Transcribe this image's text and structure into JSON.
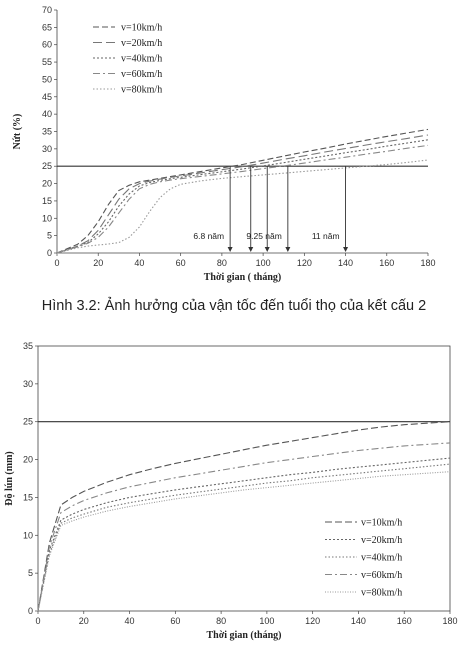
{
  "caption": "Hình 3.2: Ảnh hưởng của vận tốc đến tuổi thọ của kết cấu 2",
  "chart_data": [
    {
      "type": "line",
      "title": "",
      "xlabel": "Thời gian ( tháng)",
      "ylabel": "Nứt (%)",
      "xlim": [
        0,
        180
      ],
      "ylim": [
        0,
        70
      ],
      "xticks": [
        0,
        20,
        40,
        60,
        80,
        100,
        120,
        140,
        160,
        180
      ],
      "yticks": [
        0,
        5,
        10,
        15,
        20,
        25,
        30,
        35,
        40,
        45,
        50,
        55,
        60,
        65,
        70
      ],
      "grid": false,
      "legend_position": "top-left",
      "x": [
        0,
        10,
        15,
        20,
        25,
        30,
        35,
        40,
        45,
        50,
        55,
        60,
        70,
        80,
        90,
        100,
        110,
        120,
        130,
        140,
        150,
        160,
        170,
        180
      ],
      "series": [
        {
          "name": "v=10km/h",
          "dash": "6 3",
          "color": "#555555",
          "values": [
            0,
            2.5,
            5,
            9,
            14,
            18,
            19.5,
            20.5,
            21,
            21.5,
            22,
            22.5,
            23.5,
            24.5,
            25.5,
            26.7,
            27.9,
            29.1,
            30.2,
            31.4,
            32.5,
            33.6,
            34.6,
            35.6
          ]
        },
        {
          "name": "v=20km/h",
          "dash": "9 4",
          "color": "#777777",
          "values": [
            0,
            2,
            3.5,
            6.5,
            11,
            15.5,
            18.5,
            20,
            20.7,
            21.3,
            21.8,
            22.2,
            23.1,
            24,
            24.9,
            25.9,
            27,
            28,
            29.1,
            30.1,
            31.1,
            32.1,
            33,
            34
          ]
        },
        {
          "name": "v=40km/h",
          "dash": "2 2",
          "color": "#666666",
          "values": [
            0,
            2,
            3,
            5.5,
            9,
            13.5,
            17,
            19.3,
            20.3,
            20.9,
            21.4,
            21.8,
            22.6,
            23.4,
            24.2,
            25.1,
            26,
            27,
            27.9,
            28.9,
            29.8,
            30.8,
            31.7,
            32.6
          ]
        },
        {
          "name": "v=60km/h",
          "dash": "7 3 2 3",
          "color": "#888888",
          "values": [
            0,
            1.8,
            2.8,
            4.5,
            7.5,
            11.5,
            15.5,
            18.5,
            19.8,
            20.5,
            21,
            21.4,
            22.1,
            22.8,
            23.5,
            24.3,
            25.1,
            25.9,
            26.8,
            27.6,
            28.5,
            29.3,
            30.2,
            31
          ]
        },
        {
          "name": "v=80km/h",
          "dash": "1.5 2",
          "color": "#999999",
          "values": [
            0,
            1.5,
            2,
            2.3,
            2.6,
            3,
            4.5,
            7.5,
            12,
            16,
            18.5,
            19.8,
            20.8,
            21.5,
            22,
            22.5,
            23,
            23.5,
            24,
            24.5,
            25,
            25.5,
            26.1,
            26.8
          ]
        }
      ],
      "reference_line": {
        "y": 25
      },
      "markers": [
        {
          "x": 84,
          "label": "6.8 năm"
        },
        {
          "x": 94
        },
        {
          "x": 102
        },
        {
          "x": 112,
          "label": "9.25 năm"
        },
        {
          "x": 140,
          "label": "11 năm"
        }
      ]
    },
    {
      "type": "line",
      "title": "",
      "xlabel": "Thời gian (tháng)",
      "ylabel": "Độ lún (mm)",
      "xlim": [
        0,
        180
      ],
      "ylim": [
        0,
        35
      ],
      "xticks": [
        0,
        20,
        40,
        60,
        80,
        100,
        120,
        140,
        160,
        180
      ],
      "yticks": [
        0,
        5,
        10,
        15,
        20,
        25,
        30,
        35
      ],
      "grid": false,
      "legend_position": "bottom-right",
      "x": [
        0,
        5,
        10,
        15,
        20,
        30,
        40,
        50,
        60,
        70,
        80,
        90,
        100,
        110,
        120,
        130,
        140,
        150,
        160,
        170,
        180
      ],
      "series": [
        {
          "name": "v=10km/h",
          "dash": "7 3",
          "color": "#555555",
          "values": [
            0,
            9,
            14,
            15,
            15.8,
            17,
            18,
            18.8,
            19.5,
            20.1,
            20.7,
            21.3,
            21.9,
            22.4,
            22.9,
            23.4,
            23.9,
            24.3,
            24.6,
            24.8,
            25
          ]
        },
        {
          "name": "v=20km/h",
          "dash": "2 2",
          "color": "#666666",
          "values": [
            0,
            8,
            12,
            12.8,
            13.4,
            14.3,
            15,
            15.5,
            16,
            16.4,
            16.8,
            17.2,
            17.6,
            18,
            18.3,
            18.7,
            19,
            19.3,
            19.6,
            19.9,
            20.2
          ]
        },
        {
          "name": "v=40km/h",
          "dash": "1.5 2",
          "color": "#777777",
          "values": [
            0,
            7.6,
            11.6,
            12.3,
            12.8,
            13.7,
            14.3,
            14.8,
            15.3,
            15.7,
            16.1,
            16.5,
            16.9,
            17.2,
            17.6,
            17.9,
            18.2,
            18.5,
            18.8,
            19.1,
            19.4
          ]
        },
        {
          "name": "v=60km/h",
          "dash": "7 3 2 3",
          "color": "#888888",
          "values": [
            0,
            8.5,
            13,
            13.9,
            14.6,
            15.6,
            16.4,
            17,
            17.6,
            18.1,
            18.6,
            19.1,
            19.6,
            20,
            20.4,
            20.8,
            21.2,
            21.5,
            21.8,
            22,
            22.2
          ]
        },
        {
          "name": "v=80km/h",
          "dash": "1 1.5",
          "color": "#999999",
          "values": [
            0,
            7.3,
            11.3,
            11.9,
            12.4,
            13.2,
            13.8,
            14.3,
            14.8,
            15.2,
            15.6,
            16,
            16.3,
            16.6,
            16.9,
            17.2,
            17.5,
            17.8,
            18,
            18.2,
            18.4
          ]
        }
      ],
      "reference_line": {
        "y": 25
      }
    }
  ]
}
